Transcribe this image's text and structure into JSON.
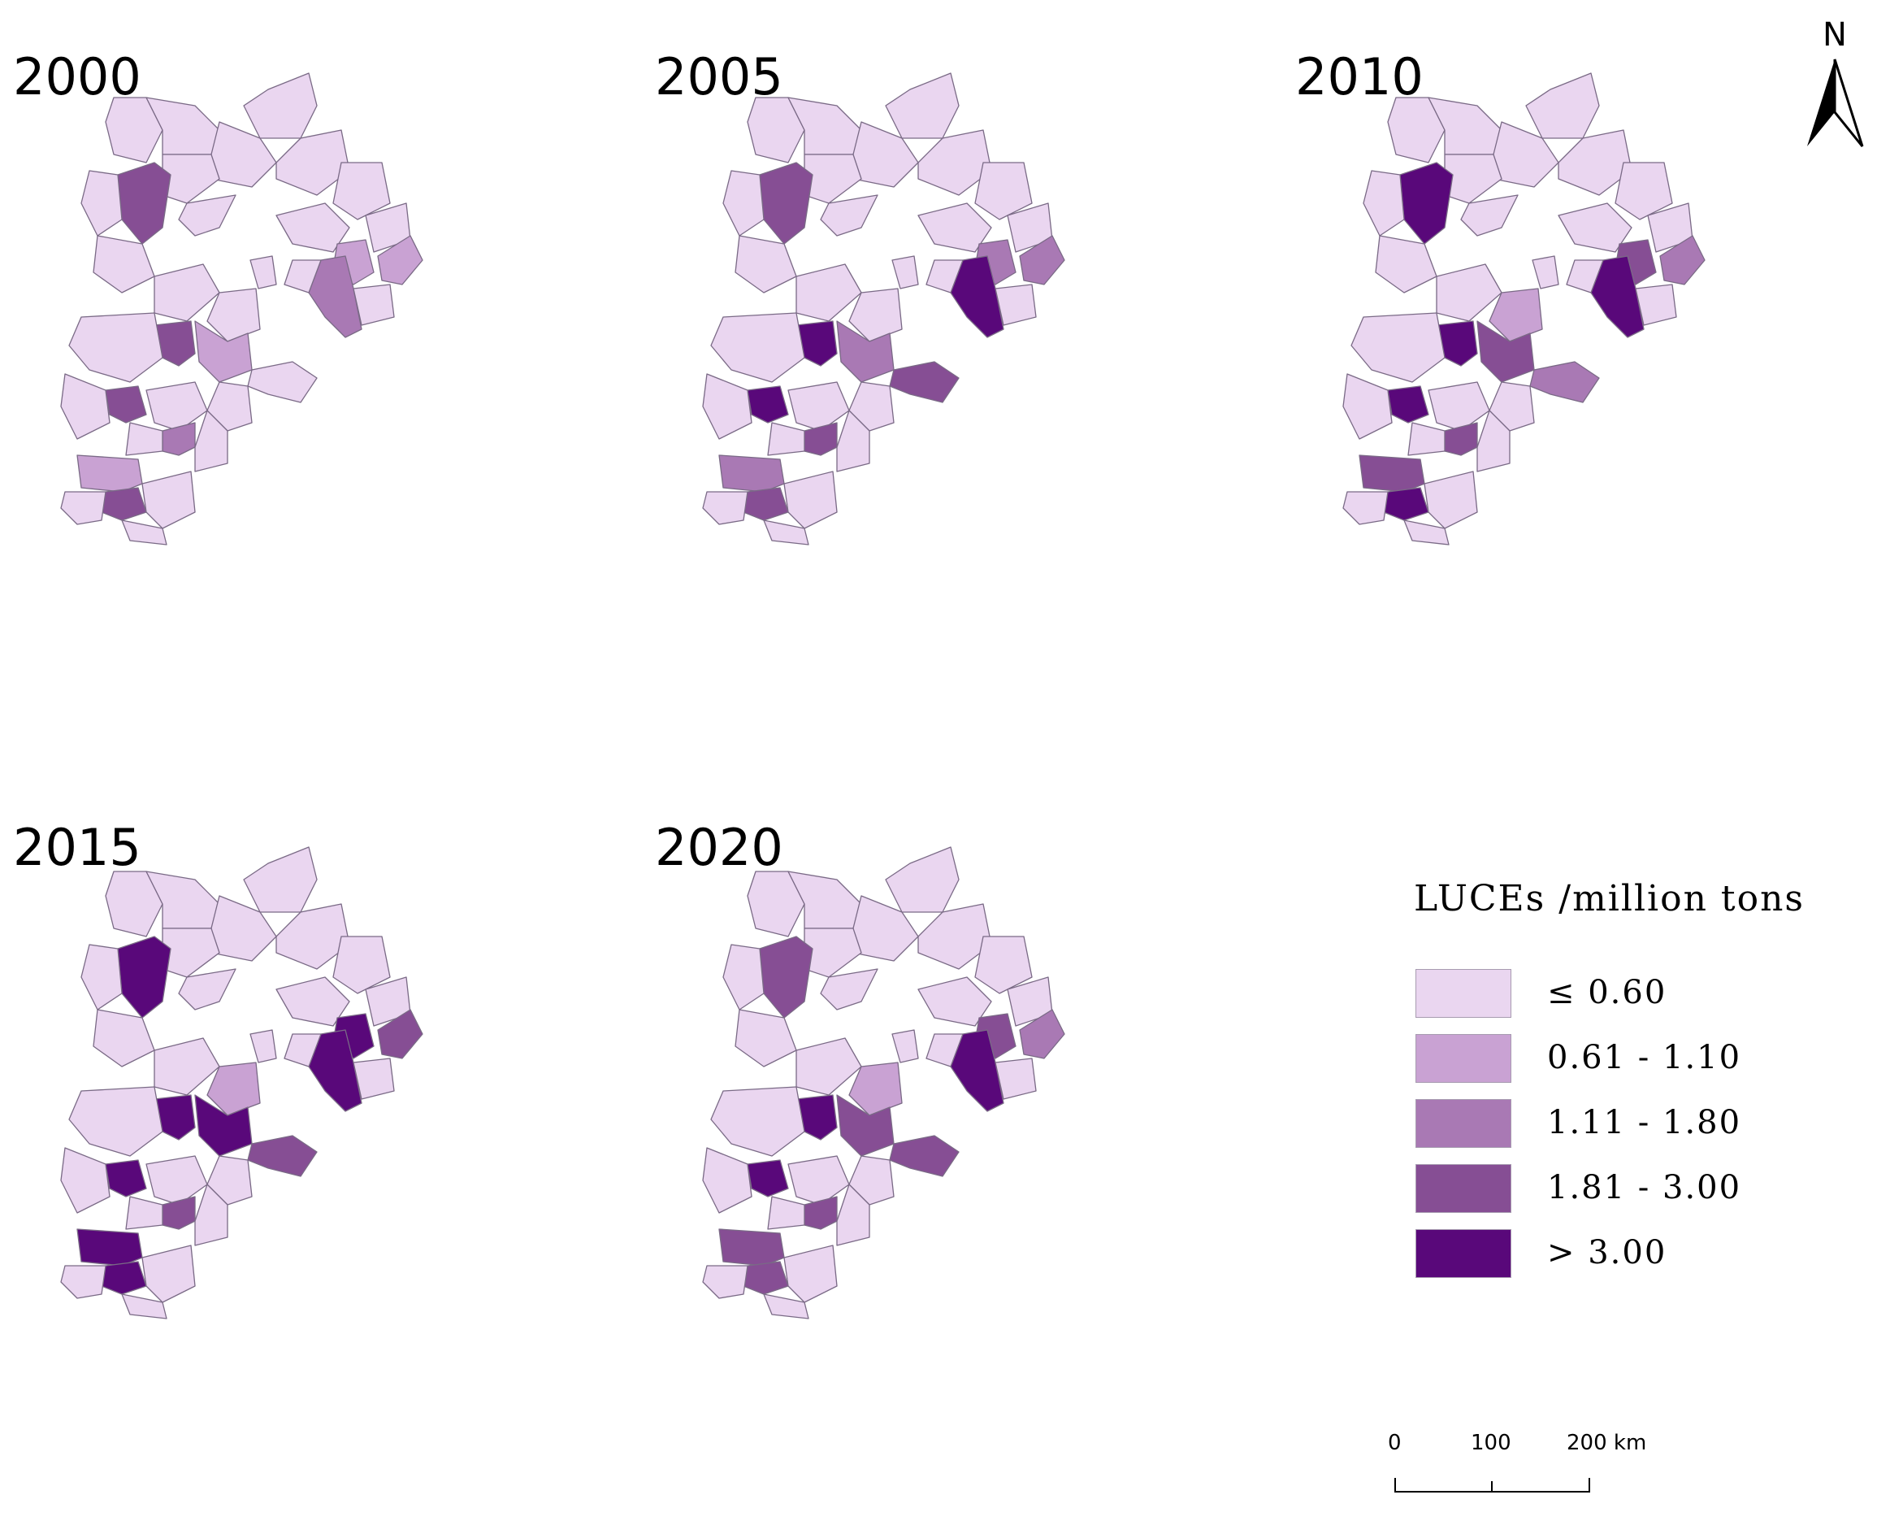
{
  "panels": [
    {
      "year": "2000",
      "classes": {
        "c": 3,
        "bs": 3,
        "ch": 1,
        "ts": 2,
        "tc": 0,
        "ce": 1,
        "cs": 1,
        "xt": 0,
        "hd": 2,
        "sw": 3
      }
    },
    {
      "year": "2005",
      "classes": {
        "c": 3,
        "bs": 4,
        "ch": 2,
        "ts": 4,
        "tc": 3,
        "ce": 2,
        "cs": 2,
        "xt": 0,
        "hd": 3,
        "sw": 4
      }
    },
    {
      "year": "2010",
      "classes": {
        "c": 4,
        "bs": 4,
        "ch": 3,
        "ts": 4,
        "tc": 2,
        "ce": 2,
        "cs": 3,
        "xt": 1,
        "hd": 3,
        "sw": 4
      }
    },
    {
      "year": "2015",
      "classes": {
        "c": 4,
        "bs": 4,
        "ch": 4,
        "ts": 4,
        "tc": 3,
        "ce": 3,
        "cs": 4,
        "xt": 1,
        "hd": 3,
        "sw": 4
      }
    },
    {
      "year": "2020",
      "classes": {
        "c": 3,
        "bs": 4,
        "ch": 3,
        "ts": 4,
        "tc": 3,
        "ce": 2,
        "cs": 3,
        "xt": 1,
        "hd": 3,
        "sw": 4
      }
    }
  ],
  "north_arrow_label": "N",
  "legend": {
    "title": "LUCEs /million tons",
    "classes": [
      {
        "label": "≤ 0.60",
        "color": "#ead6f0"
      },
      {
        "label": "0.61 - 1.10",
        "color": "#c9a2d3"
      },
      {
        "label": "1.11 - 1.80",
        "color": "#a979b4"
      },
      {
        "label": "1.81 - 3.00",
        "color": "#864e94"
      },
      {
        "label": "> 3.00",
        "color": "#59087a"
      }
    ]
  },
  "scale_bar": {
    "labels": [
      "0",
      "100",
      "200 km"
    ]
  }
}
